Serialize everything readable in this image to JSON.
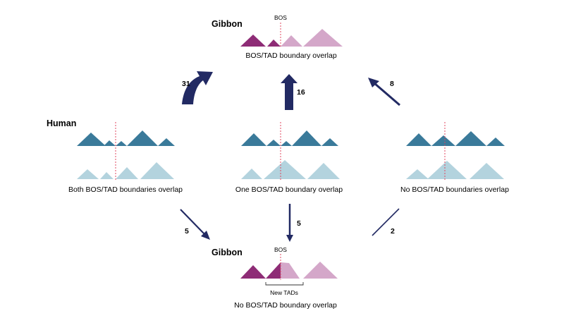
{
  "colors": {
    "gibbon_dark": "#8e2c76",
    "gibbon_light": "#d4a7c9",
    "human_dark": "#3a7a9a",
    "human_light": "#b3d3de",
    "arrow": "#222a63",
    "boundary_line": "#e0475f"
  },
  "top": {
    "species": "Gibbon",
    "bos_label": "BOS",
    "caption": "BOS/TAD boundary overlap"
  },
  "human": {
    "species": "Human",
    "panels": [
      {
        "caption": "Both BOS/TAD boundaries overlap"
      },
      {
        "caption": "One BOS/TAD boundary overlap"
      },
      {
        "caption": "No BOS/TAD boundaries overlap"
      }
    ]
  },
  "bottom": {
    "species": "Gibbon",
    "bos_label": "BOS",
    "new_tads_label": "New TADs",
    "caption": "No BOS/TAD boundary overlap"
  },
  "arrows": {
    "both_to_top": "31",
    "one_to_top": "16",
    "none_to_top": "8",
    "both_to_bottom": "5",
    "one_to_bottom": "5",
    "none_to_bottom": "2"
  }
}
